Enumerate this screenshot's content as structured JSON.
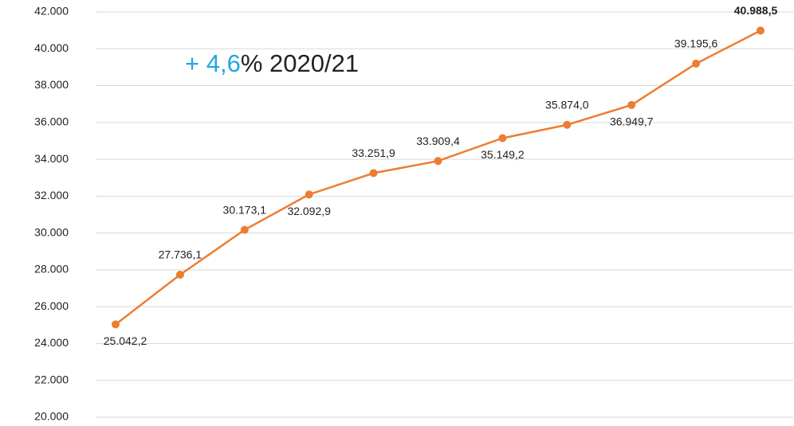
{
  "chart_data": {
    "type": "line",
    "annotation": {
      "highlight": "+ 4,6",
      "text": "% 2020/21"
    },
    "highlight_color": "#1fa8e0",
    "categories": [
      null,
      null,
      null,
      null,
      null,
      null,
      null,
      null,
      null,
      null,
      null
    ],
    "series": [
      {
        "color": "#ed7d31",
        "values": [
          25042.2,
          27736.1,
          30173.1,
          32092.9,
          33251.9,
          33909.4,
          35149.2,
          35874.0,
          36949.7,
          39195.6,
          40988.5
        ],
        "value_labels": [
          "25.042,2",
          "27.736,1",
          "30.173,1",
          "32.092,9",
          "33.251,9",
          "33.909,4",
          "35.149,2",
          "35.874,0",
          "36.949,7",
          "39.195,6",
          "40.988,5"
        ]
      }
    ],
    "ylim": [
      20000,
      42000
    ],
    "yticks": [
      {
        "value": 20000,
        "label": "20.000"
      },
      {
        "value": 22000,
        "label": "22.000"
      },
      {
        "value": 24000,
        "label": "24.000"
      },
      {
        "value": 26000,
        "label": "26.000"
      },
      {
        "value": 28000,
        "label": "28.000"
      },
      {
        "value": 30000,
        "label": "30.000"
      },
      {
        "value": 32000,
        "label": "32.000"
      },
      {
        "value": 34000,
        "label": "34.000"
      },
      {
        "value": 36000,
        "label": "36.000"
      },
      {
        "value": 38000,
        "label": "38.000"
      },
      {
        "value": 40000,
        "label": "40.000"
      },
      {
        "value": 42000,
        "label": "42.000"
      }
    ],
    "grid": true
  }
}
